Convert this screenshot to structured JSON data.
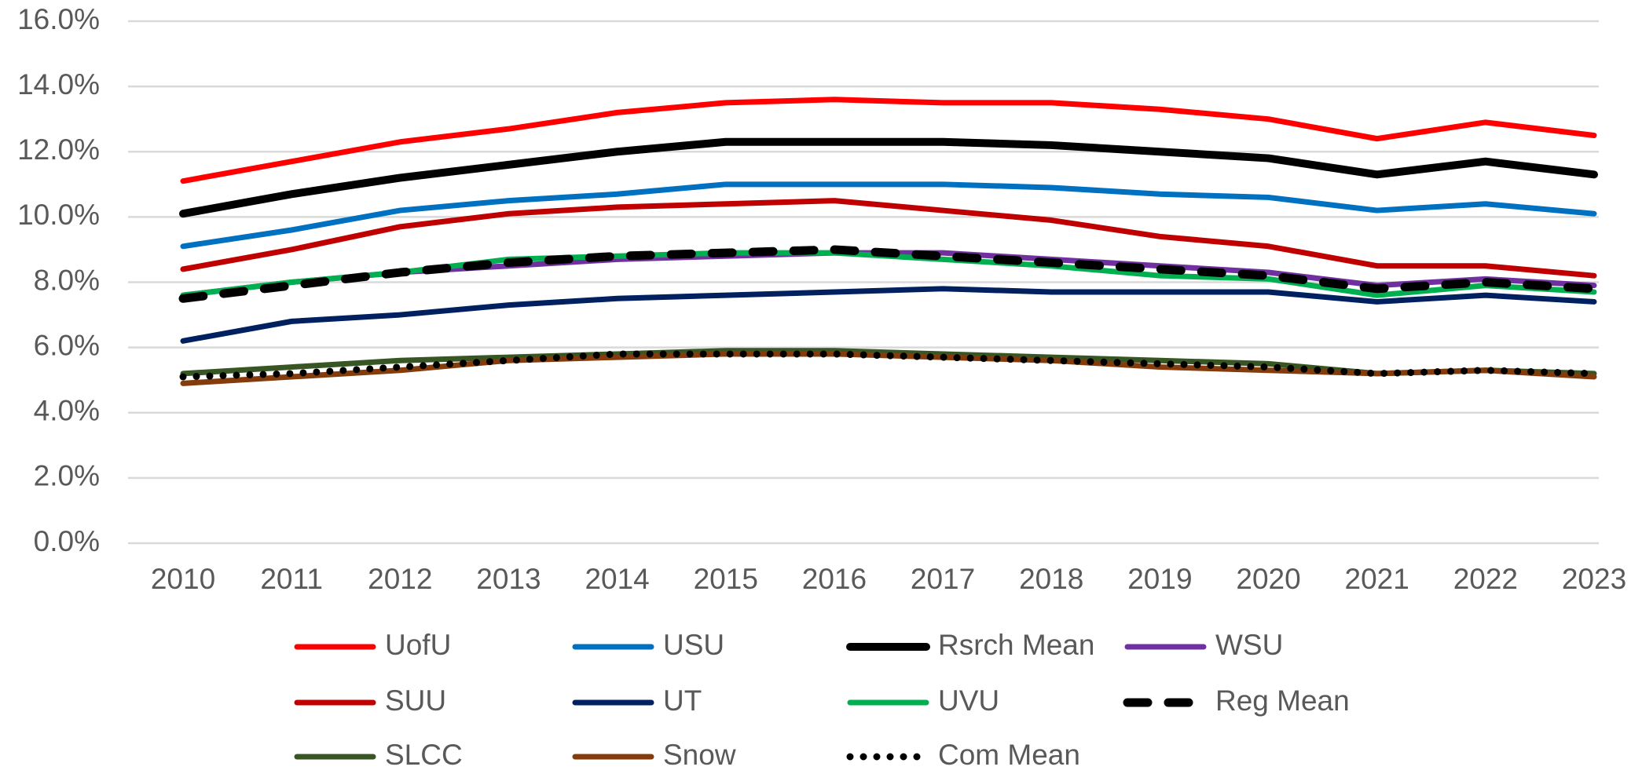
{
  "chart_data": {
    "type": "line",
    "categories": [
      "2010",
      "2011",
      "2012",
      "2013",
      "2014",
      "2015",
      "2016",
      "2017",
      "2018",
      "2019",
      "2020",
      "2021",
      "2022",
      "2023"
    ],
    "ylim": [
      0,
      16
    ],
    "yticks": [
      {
        "value": 0,
        "label": "0.0%"
      },
      {
        "value": 2,
        "label": "2.0%"
      },
      {
        "value": 4,
        "label": "4.0%"
      },
      {
        "value": 6,
        "label": "6.0%"
      },
      {
        "value": 8,
        "label": "8.0%"
      },
      {
        "value": 10,
        "label": "10.0%"
      },
      {
        "value": 12,
        "label": "12.0%"
      },
      {
        "value": 14,
        "label": "14.0%"
      },
      {
        "value": 16,
        "label": "16.0%"
      }
    ],
    "grid": true,
    "legend": "bottom",
    "series": [
      {
        "name": "UofU",
        "color": "#ff0000",
        "line_style": "solid",
        "values": [
          11.1,
          11.7,
          12.3,
          12.7,
          13.2,
          13.5,
          13.6,
          13.5,
          13.5,
          13.3,
          13.0,
          12.4,
          12.9,
          12.5
        ]
      },
      {
        "name": "USU",
        "color": "#0070c0",
        "line_style": "solid",
        "values": [
          9.1,
          9.6,
          10.2,
          10.5,
          10.7,
          11.0,
          11.0,
          11.0,
          10.9,
          10.7,
          10.6,
          10.2,
          10.4,
          10.1
        ]
      },
      {
        "name": "Rsrch Mean",
        "color": "#000000",
        "line_style": "thick",
        "values": [
          10.1,
          10.7,
          11.2,
          11.6,
          12.0,
          12.3,
          12.3,
          12.3,
          12.2,
          12.0,
          11.8,
          11.3,
          11.7,
          11.3
        ]
      },
      {
        "name": "WSU",
        "color": "#7030a0",
        "line_style": "solid",
        "values": [
          7.6,
          8.0,
          8.3,
          8.5,
          8.7,
          8.8,
          8.9,
          8.9,
          8.7,
          8.5,
          8.3,
          7.9,
          8.1,
          7.9
        ]
      },
      {
        "name": "SUU",
        "color": "#c00000",
        "line_style": "solid",
        "values": [
          8.4,
          9.0,
          9.7,
          10.1,
          10.3,
          10.4,
          10.5,
          10.2,
          9.9,
          9.4,
          9.1,
          8.5,
          8.5,
          8.2
        ]
      },
      {
        "name": "UT",
        "color": "#002060",
        "line_style": "solid",
        "values": [
          6.2,
          6.8,
          7.0,
          7.3,
          7.5,
          7.6,
          7.7,
          7.8,
          7.7,
          7.7,
          7.7,
          7.4,
          7.6,
          7.4
        ]
      },
      {
        "name": "UVU",
        "color": "#00b050",
        "line_style": "solid",
        "values": [
          7.6,
          8.0,
          8.3,
          8.7,
          8.8,
          8.9,
          8.9,
          8.7,
          8.5,
          8.2,
          8.1,
          7.6,
          7.9,
          7.7
        ]
      },
      {
        "name": "Reg Mean",
        "color": "#000000",
        "line_style": "dashed",
        "values": [
          7.5,
          7.9,
          8.3,
          8.6,
          8.8,
          8.9,
          9.0,
          8.8,
          8.6,
          8.4,
          8.2,
          7.8,
          8.0,
          7.8
        ]
      },
      {
        "name": "SLCC",
        "color": "#375623",
        "line_style": "solid",
        "values": [
          5.2,
          5.4,
          5.6,
          5.7,
          5.8,
          5.9,
          5.9,
          5.8,
          5.7,
          5.6,
          5.5,
          5.2,
          5.3,
          5.2
        ]
      },
      {
        "name": "Snow",
        "color": "#843c0c",
        "line_style": "solid",
        "values": [
          4.9,
          5.1,
          5.3,
          5.6,
          5.7,
          5.8,
          5.8,
          5.7,
          5.6,
          5.4,
          5.3,
          5.2,
          5.3,
          5.1
        ]
      },
      {
        "name": "Com Mean",
        "color": "#000000",
        "line_style": "dotted",
        "values": [
          5.1,
          5.2,
          5.4,
          5.6,
          5.8,
          5.8,
          5.8,
          5.7,
          5.6,
          5.5,
          5.4,
          5.2,
          5.3,
          5.2
        ]
      }
    ]
  }
}
